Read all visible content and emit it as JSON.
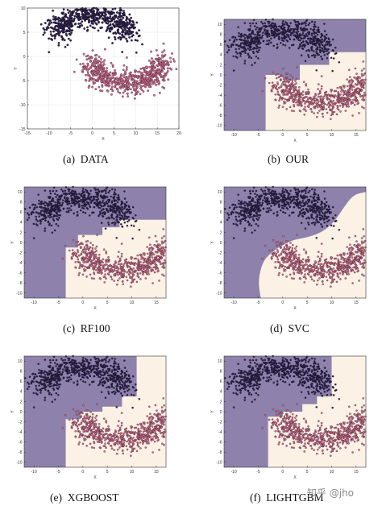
{
  "chart_data": [
    {
      "id": "a",
      "type": "scatter",
      "caption": "(a)  DATA",
      "xlabel": "X",
      "ylabel": "Y",
      "xlim": [
        -15,
        20
      ],
      "ylim": [
        -15,
        10
      ],
      "xticks": [
        -15,
        -10,
        -5,
        0,
        5,
        10,
        15,
        20
      ],
      "yticks": [
        10,
        5,
        0,
        -5,
        -10,
        -15
      ],
      "grid": true,
      "decision_regions": null
    },
    {
      "id": "b",
      "type": "scatter",
      "caption": "(b)  OUR",
      "xlabel": "X",
      "ylabel": "Y",
      "xlim": [
        -12,
        17
      ],
      "ylim": [
        -11,
        11
      ],
      "xticks": [
        -10,
        -5,
        0,
        5,
        10,
        15
      ],
      "yticks": [
        10,
        8,
        6,
        4,
        2,
        0,
        -2,
        -4,
        -6,
        -8,
        -10
      ],
      "grid": false,
      "decision_regions": "step",
      "boundary": [
        [
          -3.5,
          -11
        ],
        [
          -3.5,
          0
        ],
        [
          0,
          0
        ],
        [
          0,
          -1
        ],
        [
          3.5,
          -1
        ],
        [
          3.5,
          2
        ],
        [
          9.5,
          2
        ],
        [
          9.5,
          4.5
        ],
        [
          17,
          4.5
        ]
      ]
    },
    {
      "id": "c",
      "type": "scatter",
      "caption": "(c)  RF100",
      "xlabel": "X",
      "ylabel": "Y",
      "xlim": [
        -12,
        17
      ],
      "ylim": [
        -11,
        11
      ],
      "xticks": [
        -10,
        -5,
        0,
        5,
        10,
        15
      ],
      "yticks": [
        10,
        8,
        6,
        4,
        2,
        0,
        -2,
        -4,
        -6,
        -8,
        -10
      ],
      "grid": false,
      "decision_regions": "step",
      "boundary": [
        [
          -3.5,
          -11
        ],
        [
          -3.5,
          -1
        ],
        [
          -1,
          -1
        ],
        [
          -1,
          1.5
        ],
        [
          4,
          1.5
        ],
        [
          4,
          3
        ],
        [
          7.5,
          3
        ],
        [
          7.5,
          4.5
        ],
        [
          17,
          4.5
        ]
      ]
    },
    {
      "id": "d",
      "type": "scatter",
      "caption": "(d)  SVC",
      "xlabel": "X",
      "ylabel": "Y",
      "xlim": [
        -12,
        17
      ],
      "ylim": [
        -11,
        11
      ],
      "xticks": [
        -10,
        -5,
        0,
        5,
        10,
        15
      ],
      "yticks": [
        10,
        8,
        6,
        4,
        2,
        0,
        -2,
        -4,
        -6,
        -8,
        -10
      ],
      "grid": false,
      "decision_regions": "smooth",
      "boundary": [
        [
          -4.5,
          -11
        ],
        [
          -5,
          -8
        ],
        [
          -4.5,
          -5
        ],
        [
          -3.5,
          -3
        ],
        [
          -1,
          -1
        ],
        [
          2,
          0.5
        ],
        [
          5,
          1
        ],
        [
          8,
          2
        ],
        [
          10.5,
          4
        ],
        [
          12.5,
          7
        ],
        [
          14.5,
          9.5
        ],
        [
          17,
          10
        ]
      ]
    },
    {
      "id": "e",
      "type": "scatter",
      "caption": "(e)  XGBOOST",
      "xlabel": "X",
      "ylabel": "Y",
      "xlim": [
        -12,
        17
      ],
      "ylim": [
        -11,
        11
      ],
      "xticks": [
        -10,
        -5,
        0,
        5,
        10,
        15
      ],
      "yticks": [
        10,
        8,
        6,
        4,
        2,
        0,
        -2,
        -4,
        -6,
        -8,
        -10
      ],
      "grid": false,
      "decision_regions": "step",
      "boundary": [
        [
          -3.5,
          -11
        ],
        [
          -3.5,
          -1.5
        ],
        [
          -0.5,
          -1.5
        ],
        [
          -0.5,
          0
        ],
        [
          4,
          0
        ],
        [
          4,
          1
        ],
        [
          8,
          1
        ],
        [
          8,
          3
        ],
        [
          11,
          3
        ],
        [
          11,
          11
        ]
      ]
    },
    {
      "id": "f",
      "type": "scatter",
      "caption": "(f)  LIGHTGBM",
      "xlabel": "X",
      "ylabel": "Y",
      "xlim": [
        -12,
        17
      ],
      "ylim": [
        -11,
        11
      ],
      "xticks": [
        -10,
        -5,
        0,
        5,
        10,
        15
      ],
      "yticks": [
        10,
        8,
        6,
        4,
        2,
        0,
        -2,
        -4,
        -6,
        -8,
        -10
      ],
      "grid": false,
      "decision_regions": "step",
      "boundary": [
        [
          -3,
          -11
        ],
        [
          -3,
          -1
        ],
        [
          0,
          -1
        ],
        [
          0,
          0
        ],
        [
          4,
          0
        ],
        [
          4,
          1.5
        ],
        [
          7,
          1.5
        ],
        [
          7,
          3
        ],
        [
          10,
          3
        ],
        [
          10,
          11
        ]
      ]
    }
  ],
  "series": [
    {
      "class": 0,
      "color": "#2a1f4a",
      "shape": "upper moon",
      "center": [
        0,
        4.5
      ],
      "radius": 8,
      "noise": 1.6,
      "count": 700
    },
    {
      "class": 1,
      "color": "#d56a8a",
      "shape": "lower moon",
      "center": [
        8,
        -1
      ],
      "radius": 8,
      "noise": 1.6,
      "count": 700
    }
  ],
  "colors": {
    "region0": "#8e82ac",
    "region1": "#fbf1e5",
    "point0": "#2a1f4a",
    "point1": "#d56a8a",
    "edge": "#1a1424",
    "axis": "#333333"
  },
  "watermark": "知乎 @jho"
}
